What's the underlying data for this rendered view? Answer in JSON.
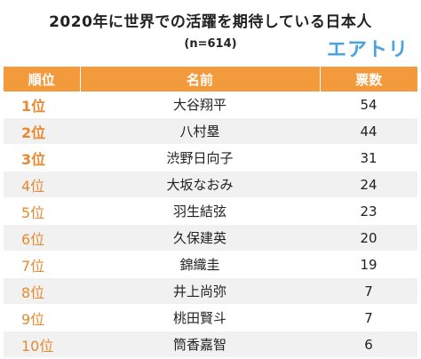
{
  "header": {
    "title": "2020年に世界での活躍を期待している日本人",
    "subtitle": "(n=614)",
    "logo_text": "エアトリ"
  },
  "table": {
    "columns": [
      "順位",
      "名前",
      "票数"
    ],
    "rows": [
      {
        "rank": "1位",
        "name": "大谷翔平",
        "votes": "54"
      },
      {
        "rank": "2位",
        "name": "八村塁",
        "votes": "44"
      },
      {
        "rank": "3位",
        "name": "渋野日向子",
        "votes": "31"
      },
      {
        "rank": "4位",
        "name": "大坂なおみ",
        "votes": "24"
      },
      {
        "rank": "5位",
        "name": "羽生結弦",
        "votes": "23"
      },
      {
        "rank": "6位",
        "name": "久保建英",
        "votes": "20"
      },
      {
        "rank": "7位",
        "name": "錦織圭",
        "votes": "19"
      },
      {
        "rank": "8位",
        "name": "井上尚弥",
        "votes": "7"
      },
      {
        "rank": "9位",
        "name": "桃田賢斗",
        "votes": "7"
      },
      {
        "rank": "10位",
        "name": "筒香嘉智",
        "votes": "6"
      }
    ]
  },
  "colors": {
    "header_bg": "#f39a3d",
    "rank_text": "#e8892f",
    "stripe": "#f1f1f1",
    "logo": "#4aa3df"
  }
}
